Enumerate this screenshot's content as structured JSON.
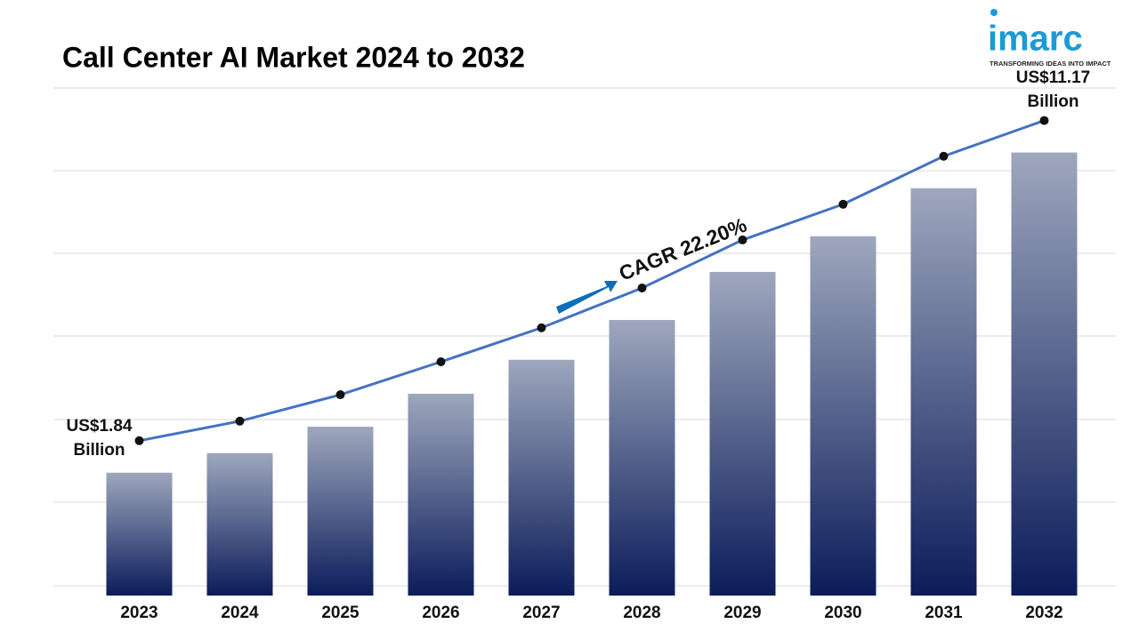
{
  "chart_data": {
    "type": "bar-line",
    "title": "Call Center AI Market 2024 to 2032",
    "categories": [
      "2023",
      "2024",
      "2025",
      "2026",
      "2027",
      "2028",
      "2029",
      "2030",
      "2031",
      "2032"
    ],
    "values": [
      1.84,
      2.41,
      3.18,
      4.14,
      5.13,
      6.29,
      7.69,
      8.73,
      10.13,
      11.17
    ],
    "value_labels": [
      "US$1.84 Billion",
      null,
      null,
      null,
      null,
      null,
      null,
      null,
      null,
      "US$11.17 Billion"
    ],
    "annotation": "CAGR 22.20%",
    "ylim": [
      -1.74,
      13.05
    ],
    "bar_color_top": "#9ea7bd",
    "bar_color_bottom": "#0b1c5a",
    "line_color": "#4472c4",
    "marker_color": "#111111"
  },
  "logo": {
    "name": "imarc",
    "tagline": "TRANSFORMING IDEAS INTO IMPACT"
  }
}
